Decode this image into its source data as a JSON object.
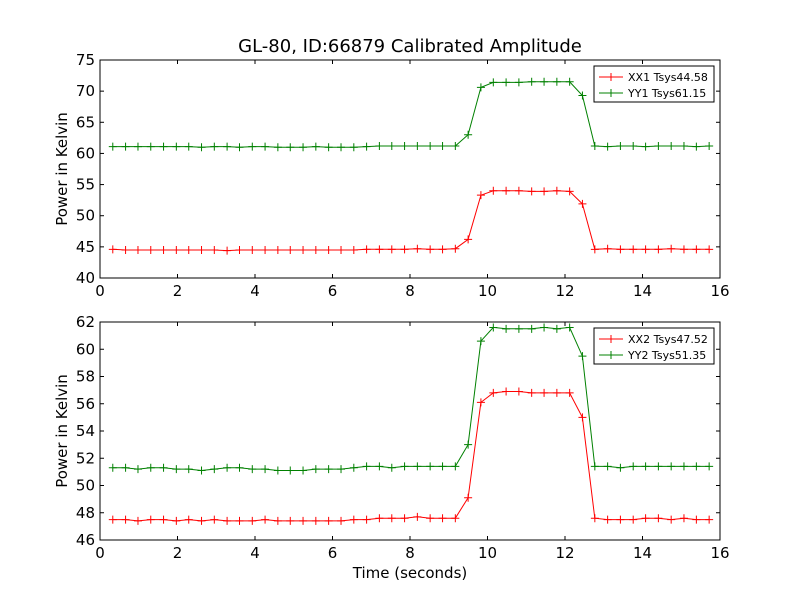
{
  "title": "GL-80, ID:66879 Calibrated Amplitude",
  "chart_data": [
    {
      "type": "line",
      "ylabel": "Power in Kelvin",
      "xlabel": "",
      "xlim": [
        0,
        16
      ],
      "ylim": [
        40,
        75
      ],
      "xticks": [
        0,
        2,
        4,
        6,
        8,
        10,
        12,
        14,
        16
      ],
      "yticks": [
        40,
        45,
        50,
        55,
        60,
        65,
        70,
        75
      ],
      "legend_position": "top-right",
      "x": [
        0.33,
        0.66,
        0.98,
        1.31,
        1.64,
        1.97,
        2.29,
        2.62,
        2.95,
        3.28,
        3.6,
        3.93,
        4.26,
        4.59,
        4.91,
        5.24,
        5.57,
        5.9,
        6.22,
        6.55,
        6.88,
        7.21,
        7.53,
        7.86,
        8.19,
        8.52,
        8.84,
        9.17,
        9.5,
        9.83,
        10.15,
        10.48,
        10.81,
        11.14,
        11.46,
        11.79,
        12.12,
        12.45,
        12.77,
        13.1,
        13.43,
        13.76,
        14.08,
        14.41,
        14.74,
        15.07,
        15.39,
        15.72
      ],
      "series": [
        {
          "name": "XX1 Tsys44.58",
          "color": "#ff0000",
          "values": [
            44.6,
            44.5,
            44.5,
            44.5,
            44.5,
            44.5,
            44.5,
            44.5,
            44.5,
            44.4,
            44.5,
            44.5,
            44.5,
            44.5,
            44.5,
            44.5,
            44.5,
            44.5,
            44.5,
            44.5,
            44.6,
            44.6,
            44.6,
            44.6,
            44.7,
            44.6,
            44.6,
            44.7,
            46.2,
            53.3,
            54.0,
            54.0,
            54.0,
            53.9,
            53.9,
            54.0,
            53.9,
            51.9,
            44.6,
            44.7,
            44.6,
            44.6,
            44.6,
            44.6,
            44.7,
            44.6,
            44.6,
            44.6
          ]
        },
        {
          "name": "YY1 Tsys61.15",
          "color": "#008000",
          "values": [
            61.1,
            61.1,
            61.1,
            61.1,
            61.1,
            61.1,
            61.1,
            61.0,
            61.1,
            61.1,
            61.0,
            61.1,
            61.1,
            61.0,
            61.0,
            61.0,
            61.1,
            61.0,
            61.0,
            61.0,
            61.1,
            61.2,
            61.2,
            61.2,
            61.2,
            61.2,
            61.2,
            61.2,
            63.0,
            70.6,
            71.4,
            71.4,
            71.4,
            71.5,
            71.5,
            71.5,
            71.5,
            69.3,
            61.2,
            61.1,
            61.2,
            61.2,
            61.1,
            61.2,
            61.2,
            61.2,
            61.1,
            61.2
          ]
        }
      ]
    },
    {
      "type": "line",
      "ylabel": "Power in Kelvin",
      "xlabel": "Time (seconds)",
      "xlim": [
        0,
        16
      ],
      "ylim": [
        46,
        62
      ],
      "xticks": [
        0,
        2,
        4,
        6,
        8,
        10,
        12,
        14,
        16
      ],
      "yticks": [
        46,
        48,
        50,
        52,
        54,
        56,
        58,
        60,
        62
      ],
      "legend_position": "top-right",
      "x": [
        0.33,
        0.66,
        0.98,
        1.31,
        1.64,
        1.97,
        2.29,
        2.62,
        2.95,
        3.28,
        3.6,
        3.93,
        4.26,
        4.59,
        4.91,
        5.24,
        5.57,
        5.9,
        6.22,
        6.55,
        6.88,
        7.21,
        7.53,
        7.86,
        8.19,
        8.52,
        8.84,
        9.17,
        9.5,
        9.83,
        10.15,
        10.48,
        10.81,
        11.14,
        11.46,
        11.79,
        12.12,
        12.45,
        12.77,
        13.1,
        13.43,
        13.76,
        14.08,
        14.41,
        14.74,
        15.07,
        15.39,
        15.72
      ],
      "series": [
        {
          "name": "XX2 Tsys47.52",
          "color": "#ff0000",
          "values": [
            47.5,
            47.5,
            47.4,
            47.5,
            47.5,
            47.4,
            47.5,
            47.4,
            47.5,
            47.4,
            47.4,
            47.4,
            47.5,
            47.4,
            47.4,
            47.4,
            47.4,
            47.4,
            47.4,
            47.5,
            47.5,
            47.6,
            47.6,
            47.6,
            47.7,
            47.6,
            47.6,
            47.6,
            49.1,
            56.1,
            56.8,
            56.9,
            56.9,
            56.8,
            56.8,
            56.8,
            56.8,
            55.0,
            47.6,
            47.5,
            47.5,
            47.5,
            47.6,
            47.6,
            47.5,
            47.6,
            47.5,
            47.5
          ]
        },
        {
          "name": "YY2 Tsys51.35",
          "color": "#008000",
          "values": [
            51.3,
            51.3,
            51.2,
            51.3,
            51.3,
            51.2,
            51.2,
            51.1,
            51.2,
            51.3,
            51.3,
            51.2,
            51.2,
            51.1,
            51.1,
            51.1,
            51.2,
            51.2,
            51.2,
            51.3,
            51.4,
            51.4,
            51.3,
            51.4,
            51.4,
            51.4,
            51.4,
            51.4,
            53.0,
            60.6,
            61.6,
            61.5,
            61.5,
            61.5,
            61.6,
            61.5,
            61.6,
            59.5,
            51.4,
            51.4,
            51.3,
            51.4,
            51.4,
            51.4,
            51.4,
            51.4,
            51.4,
            51.4
          ]
        }
      ]
    }
  ]
}
